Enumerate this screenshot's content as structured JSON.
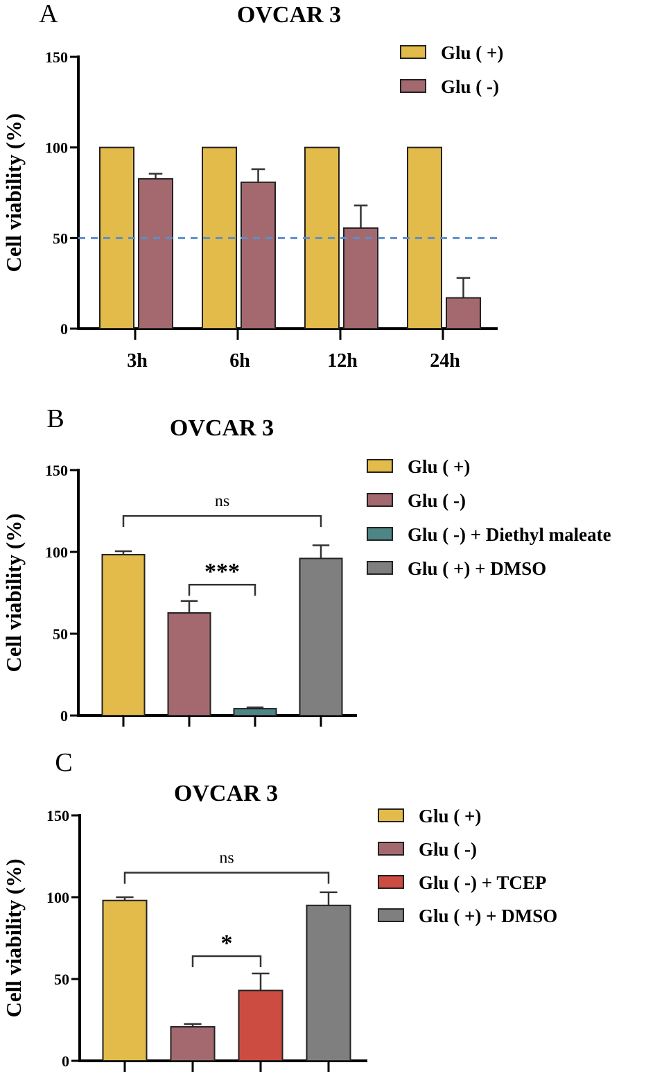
{
  "chart_data": [
    {
      "type": "bar",
      "panel_label": "A",
      "title": "OVCAR 3",
      "ylabel": "Cell viability (%)",
      "xlabel": "",
      "ylim": [
        0,
        150
      ],
      "yticks": [
        "0",
        "50",
        "100",
        "150"
      ],
      "ytick_values": [
        0,
        50,
        100,
        150
      ],
      "categories": [
        "3h",
        "6h",
        "12h",
        "24h"
      ],
      "reference_line": {
        "y": 50,
        "style": "dashed",
        "color": "#5b8fc9"
      },
      "legend_position": "top-right",
      "series": [
        {
          "name": "Glu ( +)",
          "color": "#e3bb4a",
          "values": [
            100,
            100,
            100,
            100
          ],
          "error": [
            0,
            0,
            0,
            0
          ]
        },
        {
          "name": "Glu ( -)",
          "color": "#a4696f",
          "values": [
            82.7,
            80.8,
            55.5,
            17
          ],
          "error": [
            2.8,
            7.2,
            12.5,
            11
          ]
        }
      ]
    },
    {
      "type": "bar",
      "panel_label": "B",
      "title": "OVCAR 3",
      "ylabel": "Cell viability (%)",
      "xlabel": "",
      "ylim": [
        0,
        150
      ],
      "yticks": [
        "0",
        "50",
        "100",
        "150"
      ],
      "ytick_values": [
        0,
        50,
        100,
        150
      ],
      "legend_position": "right",
      "series": [
        {
          "name": "Glu ( +)",
          "color": "#e3bb4a",
          "value": 98.3,
          "error": 2.1
        },
        {
          "name": "Glu ( -)",
          "color": "#a4696f",
          "value": 62.7,
          "error": 7.3
        },
        {
          "name": "Glu ( -) + Diethyl maleate",
          "color": "#4e8585",
          "value": 4.2,
          "error": 0.8
        },
        {
          "name": "Glu ( +) + DMSO",
          "color": "#7f7f7f",
          "value": 96,
          "error": 8
        }
      ],
      "annotations": [
        {
          "text": "ns",
          "from": 0,
          "to": 3,
          "level": 122
        },
        {
          "text": "***",
          "from": 1,
          "to": 2,
          "level": 80
        }
      ]
    },
    {
      "type": "bar",
      "panel_label": "C",
      "title": "OVCAR 3",
      "ylabel": "Cell viability (%)",
      "xlabel": "",
      "ylim": [
        0,
        150
      ],
      "yticks": [
        "0",
        "50",
        "100",
        "150"
      ],
      "ytick_values": [
        0,
        50,
        100,
        150
      ],
      "legend_position": "right",
      "series": [
        {
          "name": "Glu ( +)",
          "color": "#e3bb4a",
          "value": 98,
          "error": 2
        },
        {
          "name": "Glu ( -)",
          "color": "#a4696f",
          "value": 20.8,
          "error": 1.7
        },
        {
          "name": "Glu ( -) + TCEP",
          "color": "#cc4c42",
          "value": 43,
          "error": 10.4
        },
        {
          "name": "Glu ( +) + DMSO",
          "color": "#7f7f7f",
          "value": 95,
          "error": 8
        }
      ],
      "annotations": [
        {
          "text": "ns",
          "from": 0,
          "to": 3,
          "level": 115
        },
        {
          "text": "*",
          "from": 1,
          "to": 2,
          "level": 64
        }
      ]
    }
  ]
}
